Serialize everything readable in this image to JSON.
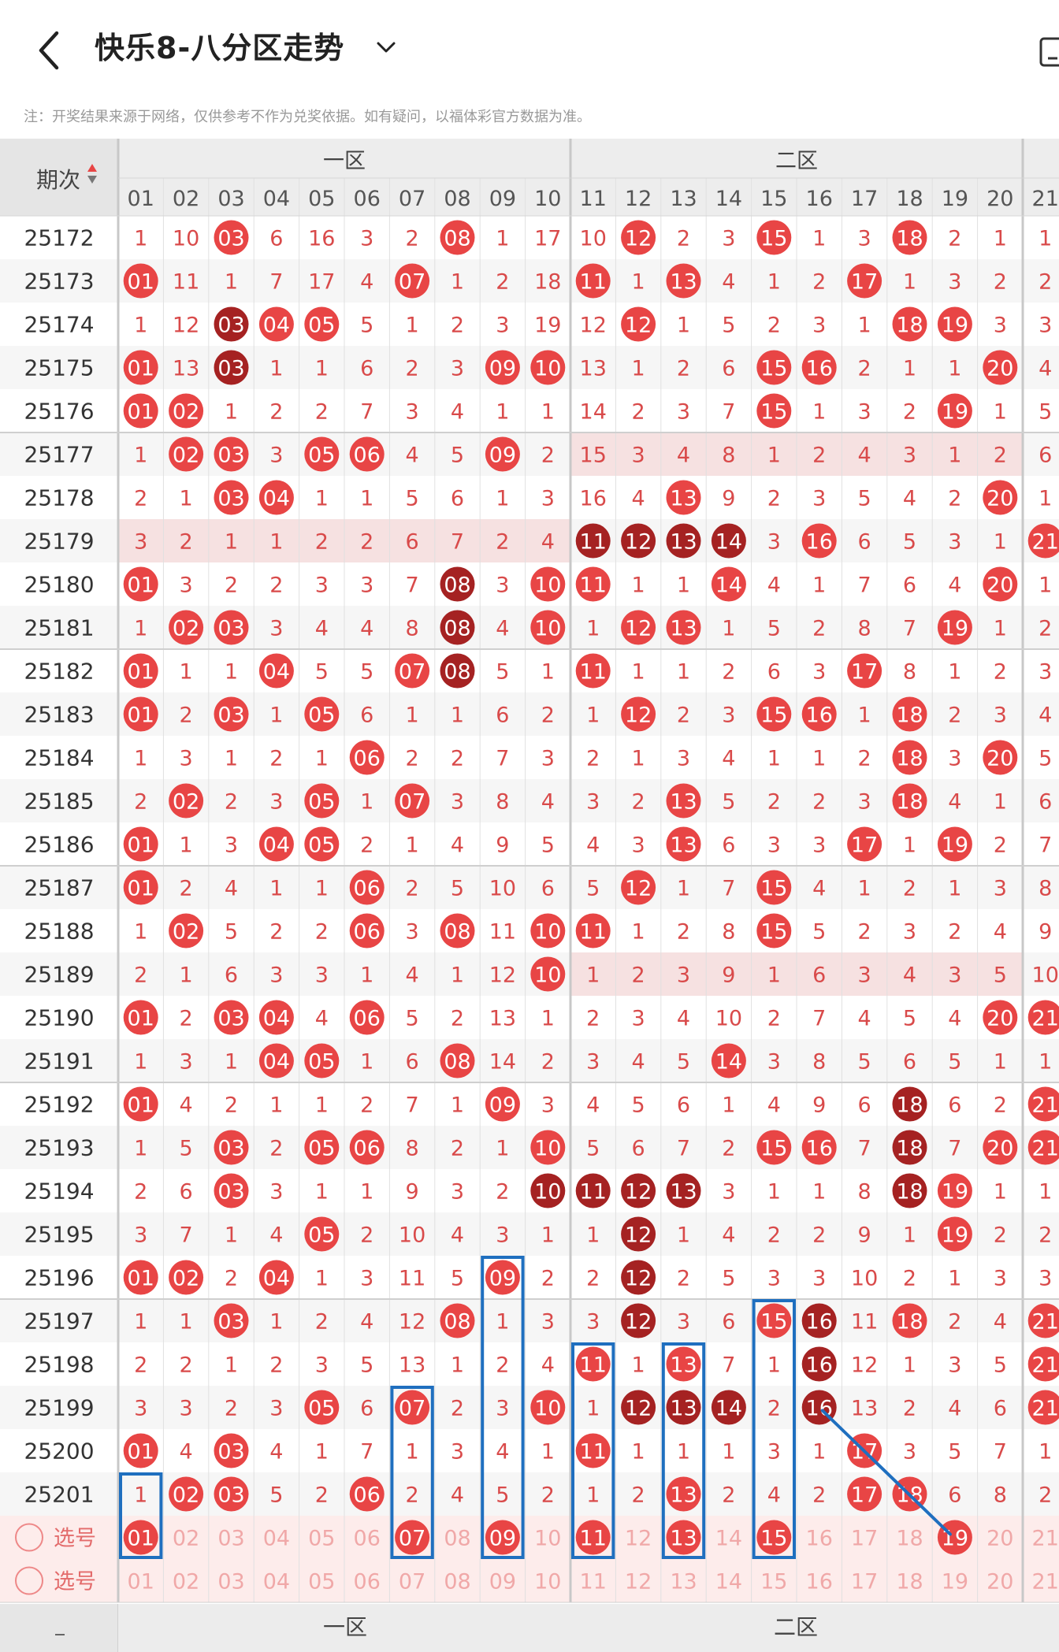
{
  "header": {
    "title": "快乐8-八分区走势",
    "note": "注：开奖结果来源于网络，仅供参考不作为兑奖依据。如有疑问，以福体彩官方数据为准。"
  },
  "table": {
    "period_header": "期次",
    "zones": [
      "一区",
      "二区"
    ],
    "columns": [
      "01",
      "02",
      "03",
      "04",
      "05",
      "06",
      "07",
      "08",
      "09",
      "10",
      "11",
      "12",
      "13",
      "14",
      "15",
      "16",
      "17",
      "18",
      "19",
      "20",
      "21"
    ],
    "rows": [
      {
        "period": "25172",
        "cells": [
          "1",
          "10",
          "03",
          "6",
          "16",
          "3",
          "2",
          "08",
          "1",
          "17",
          "10",
          "12",
          "2",
          "3",
          "15",
          "1",
          "3",
          "18",
          "2",
          "1",
          "1"
        ]
      },
      {
        "period": "25173",
        "cells": [
          "01",
          "11",
          "1",
          "7",
          "17",
          "4",
          "07",
          "1",
          "2",
          "18",
          "11",
          "1",
          "13",
          "4",
          "1",
          "2",
          "17",
          "1",
          "3",
          "2",
          "2"
        ]
      },
      {
        "period": "25174",
        "cells": [
          "1",
          "12",
          "03",
          "04",
          "05",
          "5",
          "1",
          "2",
          "3",
          "19",
          "12",
          "12",
          "1",
          "5",
          "2",
          "3",
          "1",
          "18",
          "19",
          "3",
          "3"
        ]
      },
      {
        "period": "25175",
        "cells": [
          "01",
          "13",
          "03",
          "1",
          "1",
          "6",
          "2",
          "3",
          "09",
          "10",
          "13",
          "1",
          "2",
          "6",
          "15",
          "16",
          "2",
          "1",
          "1",
          "20",
          "4"
        ]
      },
      {
        "period": "25176",
        "cells": [
          "01",
          "02",
          "1",
          "2",
          "2",
          "7",
          "3",
          "4",
          "1",
          "1",
          "14",
          "2",
          "3",
          "7",
          "15",
          "1",
          "3",
          "2",
          "19",
          "1",
          "5"
        ]
      },
      {
        "period": "25177",
        "cells": [
          "1",
          "02",
          "03",
          "3",
          "05",
          "06",
          "4",
          "5",
          "09",
          "2",
          "15",
          "3",
          "4",
          "8",
          "1",
          "2",
          "4",
          "3",
          "1",
          "2",
          "6"
        ]
      },
      {
        "period": "25178",
        "cells": [
          "2",
          "1",
          "03",
          "04",
          "1",
          "1",
          "5",
          "6",
          "1",
          "3",
          "16",
          "4",
          "13",
          "9",
          "2",
          "3",
          "5",
          "4",
          "2",
          "20",
          "1"
        ]
      },
      {
        "period": "25179",
        "cells": [
          "3",
          "2",
          "1",
          "1",
          "2",
          "2",
          "6",
          "7",
          "2",
          "4",
          "11",
          "12",
          "13",
          "14",
          "3",
          "16",
          "6",
          "5",
          "3",
          "1",
          "21"
        ]
      },
      {
        "period": "25180",
        "cells": [
          "01",
          "3",
          "2",
          "2",
          "3",
          "3",
          "7",
          "08",
          "3",
          "10",
          "11",
          "1",
          "1",
          "14",
          "4",
          "1",
          "7",
          "6",
          "4",
          "20",
          "1"
        ]
      },
      {
        "period": "25181",
        "cells": [
          "1",
          "02",
          "03",
          "3",
          "4",
          "4",
          "8",
          "08",
          "4",
          "10",
          "1",
          "12",
          "13",
          "1",
          "5",
          "2",
          "8",
          "7",
          "19",
          "1",
          "2"
        ]
      },
      {
        "period": "25182",
        "cells": [
          "01",
          "1",
          "1",
          "04",
          "5",
          "5",
          "07",
          "08",
          "5",
          "1",
          "11",
          "1",
          "1",
          "2",
          "6",
          "3",
          "17",
          "8",
          "1",
          "2",
          "3"
        ]
      },
      {
        "period": "25183",
        "cells": [
          "01",
          "2",
          "03",
          "1",
          "05",
          "6",
          "1",
          "1",
          "6",
          "2",
          "1",
          "12",
          "2",
          "3",
          "15",
          "16",
          "1",
          "18",
          "2",
          "3",
          "4"
        ]
      },
      {
        "period": "25184",
        "cells": [
          "1",
          "3",
          "1",
          "2",
          "1",
          "06",
          "2",
          "2",
          "7",
          "3",
          "2",
          "1",
          "3",
          "4",
          "1",
          "1",
          "2",
          "18",
          "3",
          "20",
          "5"
        ]
      },
      {
        "period": "25185",
        "cells": [
          "2",
          "02",
          "2",
          "3",
          "05",
          "1",
          "07",
          "3",
          "8",
          "4",
          "3",
          "2",
          "13",
          "5",
          "2",
          "2",
          "3",
          "18",
          "4",
          "1",
          "6"
        ]
      },
      {
        "period": "25186",
        "cells": [
          "01",
          "1",
          "3",
          "04",
          "05",
          "2",
          "1",
          "4",
          "9",
          "5",
          "4",
          "3",
          "13",
          "6",
          "3",
          "3",
          "17",
          "1",
          "19",
          "2",
          "7"
        ]
      },
      {
        "period": "25187",
        "cells": [
          "01",
          "2",
          "4",
          "1",
          "1",
          "06",
          "2",
          "5",
          "10",
          "6",
          "5",
          "12",
          "1",
          "7",
          "15",
          "4",
          "1",
          "2",
          "1",
          "3",
          "8"
        ]
      },
      {
        "period": "25188",
        "cells": [
          "1",
          "02",
          "5",
          "2",
          "2",
          "06",
          "3",
          "08",
          "11",
          "10",
          "11",
          "1",
          "2",
          "8",
          "15",
          "5",
          "2",
          "3",
          "2",
          "4",
          "9"
        ]
      },
      {
        "period": "25189",
        "cells": [
          "2",
          "1",
          "6",
          "3",
          "3",
          "1",
          "4",
          "1",
          "12",
          "10",
          "1",
          "2",
          "3",
          "9",
          "1",
          "6",
          "3",
          "4",
          "3",
          "5",
          "10"
        ]
      },
      {
        "period": "25190",
        "cells": [
          "01",
          "2",
          "03",
          "04",
          "4",
          "06",
          "5",
          "2",
          "13",
          "1",
          "2",
          "3",
          "4",
          "10",
          "2",
          "7",
          "4",
          "5",
          "4",
          "20",
          "21"
        ]
      },
      {
        "period": "25191",
        "cells": [
          "1",
          "3",
          "1",
          "04",
          "05",
          "1",
          "6",
          "08",
          "14",
          "2",
          "3",
          "4",
          "5",
          "14",
          "3",
          "8",
          "5",
          "6",
          "5",
          "1",
          "1"
        ]
      },
      {
        "period": "25192",
        "cells": [
          "01",
          "4",
          "2",
          "1",
          "1",
          "2",
          "7",
          "1",
          "09",
          "3",
          "4",
          "5",
          "6",
          "1",
          "4",
          "9",
          "6",
          "18",
          "6",
          "2",
          "21"
        ]
      },
      {
        "period": "25193",
        "cells": [
          "1",
          "5",
          "03",
          "2",
          "05",
          "06",
          "8",
          "2",
          "1",
          "10",
          "5",
          "6",
          "7",
          "2",
          "15",
          "16",
          "7",
          "18",
          "7",
          "20",
          "21"
        ]
      },
      {
        "period": "25194",
        "cells": [
          "2",
          "6",
          "03",
          "3",
          "1",
          "1",
          "9",
          "3",
          "2",
          "10",
          "11",
          "12",
          "13",
          "3",
          "1",
          "1",
          "8",
          "18",
          "19",
          "1",
          "1"
        ]
      },
      {
        "period": "25195",
        "cells": [
          "3",
          "7",
          "1",
          "4",
          "05",
          "2",
          "10",
          "4",
          "3",
          "1",
          "1",
          "12",
          "1",
          "4",
          "2",
          "2",
          "9",
          "1",
          "19",
          "2",
          "2"
        ]
      },
      {
        "period": "25196",
        "cells": [
          "01",
          "02",
          "2",
          "04",
          "1",
          "3",
          "11",
          "5",
          "09",
          "2",
          "2",
          "12",
          "2",
          "5",
          "3",
          "3",
          "10",
          "2",
          "1",
          "3",
          "3"
        ]
      },
      {
        "period": "25197",
        "cells": [
          "1",
          "1",
          "03",
          "1",
          "2",
          "4",
          "12",
          "08",
          "1",
          "3",
          "3",
          "12",
          "3",
          "6",
          "15",
          "16",
          "11",
          "18",
          "2",
          "4",
          "21"
        ]
      },
      {
        "period": "25198",
        "cells": [
          "2",
          "2",
          "1",
          "2",
          "3",
          "5",
          "13",
          "1",
          "2",
          "4",
          "11",
          "1",
          "13",
          "7",
          "1",
          "16",
          "12",
          "1",
          "3",
          "5",
          "21"
        ]
      },
      {
        "period": "25199",
        "cells": [
          "3",
          "3",
          "2",
          "3",
          "05",
          "6",
          "07",
          "2",
          "3",
          "10",
          "1",
          "12",
          "13",
          "14",
          "2",
          "16",
          "13",
          "2",
          "4",
          "6",
          "21"
        ]
      },
      {
        "period": "25200",
        "cells": [
          "01",
          "4",
          "03",
          "4",
          "1",
          "7",
          "1",
          "3",
          "4",
          "1",
          "11",
          "1",
          "1",
          "1",
          "3",
          "1",
          "17",
          "3",
          "5",
          "7",
          "1"
        ]
      },
      {
        "period": "25201",
        "cells": [
          "1",
          "02",
          "03",
          "5",
          "2",
          "06",
          "2",
          "4",
          "5",
          "2",
          "1",
          "2",
          "13",
          "2",
          "4",
          "2",
          "17",
          "18",
          "6",
          "8",
          "2"
        ]
      }
    ],
    "pick_rows": [
      {
        "label": "选号",
        "selected": [
          "01",
          "07",
          "09",
          "11",
          "13",
          "15",
          "19"
        ]
      },
      {
        "label": "选号",
        "selected": []
      }
    ]
  },
  "colors": {
    "hit": "#e84545",
    "hit_dark": "#a52222",
    "miss_text": "#d94a4a",
    "box": "#1f6fbf",
    "zone_line": "#c8c8c8"
  }
}
